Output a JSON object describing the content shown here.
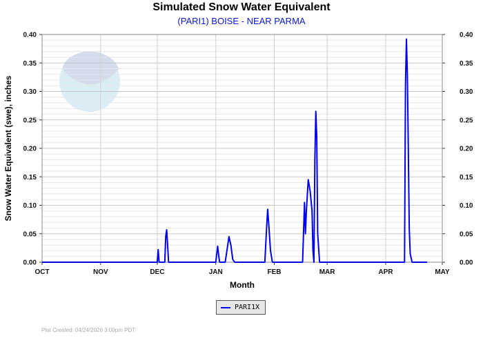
{
  "chart_data": {
    "type": "line",
    "title": "Simulated Snow Water Equivalent",
    "subtitle": "(PARI1) BOISE - NEAR PARMA",
    "xlabel": "Month",
    "ylabel": "Snow Water Equivalent (swe),  inches",
    "x_ticks": [
      "OCT",
      "NOV",
      "DEC",
      "JAN",
      "FEB",
      "MAR",
      "APR",
      "MAY"
    ],
    "y_ticks": [
      "0.00",
      "0.05",
      "0.10",
      "0.15",
      "0.20",
      "0.25",
      "0.30",
      "0.35",
      "0.40"
    ],
    "ylim": [
      0,
      0.4
    ],
    "xlim": [
      "2025-10-01",
      "2026-05-01"
    ],
    "grid": true,
    "legend_position": "bottom-center",
    "series": [
      {
        "name": "PARI1X",
        "color": "#0000ee",
        "points": [
          [
            "2025-10-01",
            0
          ],
          [
            "2025-12-01",
            0
          ],
          [
            "2025-12-01T12",
            0.022
          ],
          [
            "2025-12-02",
            0
          ],
          [
            "2025-12-05",
            0
          ],
          [
            "2025-12-05T12",
            0.045
          ],
          [
            "2025-12-06",
            0.057
          ],
          [
            "2025-12-06T12",
            0.03
          ],
          [
            "2025-12-07",
            0
          ],
          [
            "2026-01-01",
            0
          ],
          [
            "2026-01-02",
            0.028
          ],
          [
            "2026-01-03",
            0
          ],
          [
            "2026-01-06",
            0
          ],
          [
            "2026-01-08",
            0.045
          ],
          [
            "2026-01-09",
            0.03
          ],
          [
            "2026-01-10",
            0.005
          ],
          [
            "2026-01-11",
            0
          ],
          [
            "2026-01-27",
            0
          ],
          [
            "2026-01-28",
            0.065
          ],
          [
            "2026-01-28T12",
            0.093
          ],
          [
            "2026-01-29",
            0.07
          ],
          [
            "2026-01-30",
            0.02
          ],
          [
            "2026-01-31",
            0
          ],
          [
            "2026-02-16",
            0
          ],
          [
            "2026-02-17",
            0.105
          ],
          [
            "2026-02-17T12",
            0.05
          ],
          [
            "2026-02-18",
            0.09
          ],
          [
            "2026-02-19",
            0.145
          ],
          [
            "2026-02-20",
            0.125
          ],
          [
            "2026-02-21",
            0.09
          ],
          [
            "2026-02-21T12",
            0.02
          ],
          [
            "2026-02-22",
            0
          ],
          [
            "2026-02-22T12",
            0.18
          ],
          [
            "2026-02-23",
            0.265
          ],
          [
            "2026-02-23T12",
            0.22
          ],
          [
            "2026-02-24",
            0.05
          ],
          [
            "2026-02-25",
            0
          ],
          [
            "2026-04-11",
            0
          ],
          [
            "2026-04-11T12",
            0.31
          ],
          [
            "2026-04-12",
            0.392
          ],
          [
            "2026-04-12T12",
            0.33
          ],
          [
            "2026-04-13",
            0.2
          ],
          [
            "2026-04-13T12",
            0.06
          ],
          [
            "2026-04-14",
            0.015
          ],
          [
            "2026-04-15",
            0
          ],
          [
            "2026-04-23",
            0
          ]
        ]
      }
    ]
  },
  "footer": "Plot Created: 04/24/2026 3:00pm PDT"
}
